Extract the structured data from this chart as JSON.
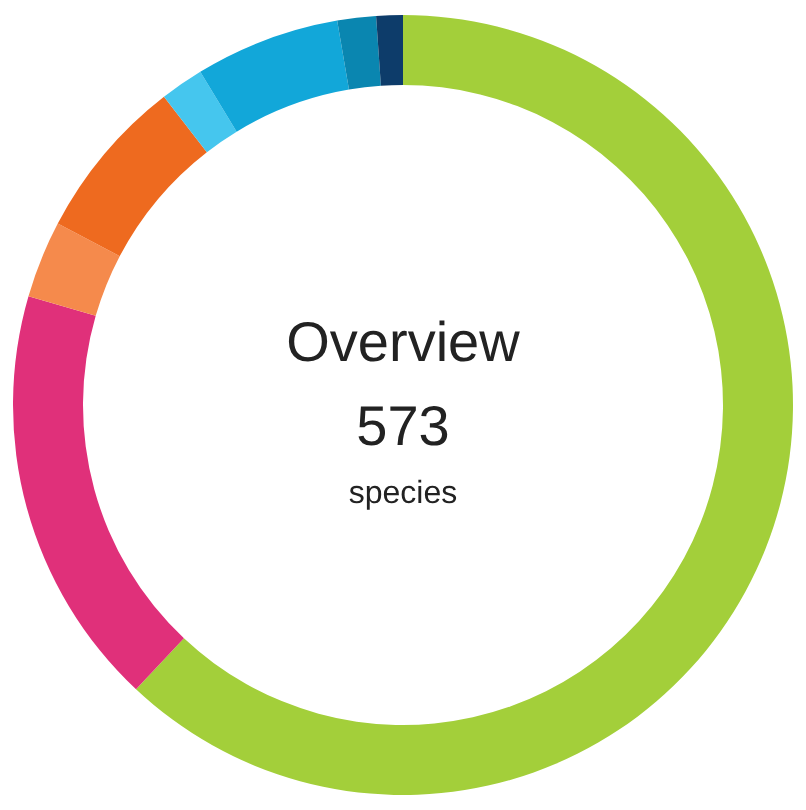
{
  "chart_data": {
    "type": "donut",
    "title": "Overview",
    "annotations": [
      "573",
      "species"
    ],
    "categories": [
      null,
      null,
      null,
      null,
      null,
      null,
      null,
      null
    ],
    "values": [
      62,
      17.5,
      3.2,
      6.8,
      1.8,
      6,
      1.6,
      1.1
    ],
    "colors": [
      "#a3cf3a",
      "#e0307a",
      "#f58a4c",
      "#ee6a1f",
      "#45c6ee",
      "#12a7d9",
      "#0a86b0",
      "#0d3c6a"
    ]
  }
}
